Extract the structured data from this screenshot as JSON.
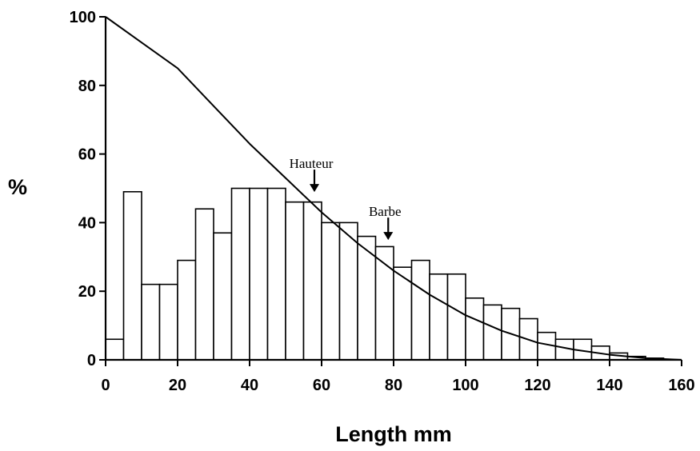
{
  "chart_data": {
    "type": "bar",
    "title": "",
    "xlabel": "Length mm",
    "ylabel": "%",
    "xlim": [
      0,
      160
    ],
    "ylim": [
      0,
      100
    ],
    "xticks": [
      0,
      20,
      40,
      60,
      80,
      100,
      120,
      140,
      160
    ],
    "yticks": [
      0,
      20,
      40,
      60,
      80,
      100
    ],
    "grid": false,
    "legend": "none",
    "bin_width": 5,
    "bins": [
      {
        "x0": 0,
        "value": 6
      },
      {
        "x0": 5,
        "value": 49
      },
      {
        "x0": 10,
        "value": 22
      },
      {
        "x0": 15,
        "value": 22
      },
      {
        "x0": 20,
        "value": 29
      },
      {
        "x0": 25,
        "value": 44
      },
      {
        "x0": 30,
        "value": 37
      },
      {
        "x0": 35,
        "value": 50
      },
      {
        "x0": 40,
        "value": 50
      },
      {
        "x0": 45,
        "value": 50
      },
      {
        "x0": 50,
        "value": 46
      },
      {
        "x0": 55,
        "value": 46
      },
      {
        "x0": 60,
        "value": 40
      },
      {
        "x0": 65,
        "value": 40
      },
      {
        "x0": 70,
        "value": 36
      },
      {
        "x0": 75,
        "value": 33
      },
      {
        "x0": 80,
        "value": 27
      },
      {
        "x0": 85,
        "value": 29
      },
      {
        "x0": 90,
        "value": 25
      },
      {
        "x0": 95,
        "value": 25
      },
      {
        "x0": 100,
        "value": 18
      },
      {
        "x0": 105,
        "value": 16
      },
      {
        "x0": 110,
        "value": 15
      },
      {
        "x0": 115,
        "value": 12
      },
      {
        "x0": 120,
        "value": 8
      },
      {
        "x0": 125,
        "value": 6
      },
      {
        "x0": 130,
        "value": 6
      },
      {
        "x0": 135,
        "value": 4
      },
      {
        "x0": 140,
        "value": 2
      },
      {
        "x0": 145,
        "value": 1
      },
      {
        "x0": 150,
        "value": 0.5
      },
      {
        "x0": 155,
        "value": 0
      }
    ],
    "curve": {
      "x": [
        0,
        10,
        20,
        30,
        40,
        50,
        60,
        70,
        80,
        90,
        100,
        110,
        120,
        130,
        140,
        150,
        160
      ],
      "y": [
        100,
        92.5,
        85,
        74,
        63,
        53,
        43,
        34,
        26,
        19,
        13,
        8.5,
        5,
        3,
        1.5,
        0.5,
        0
      ]
    },
    "annotations": [
      {
        "text": "Hauteur",
        "x": 58,
        "y": 48
      },
      {
        "text": "Barbe",
        "x": 78.5,
        "y": 34
      }
    ],
    "colors": {
      "bar_fill": "#ffffff",
      "stroke": "#000000"
    }
  }
}
